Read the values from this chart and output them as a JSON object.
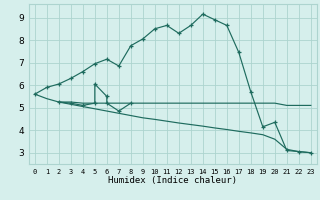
{
  "xlabel": "Humidex (Indice chaleur)",
  "bg_color": "#d6efec",
  "grid_color": "#add4cf",
  "line_color": "#1e6b5e",
  "xlim": [
    -0.5,
    23.5
  ],
  "ylim": [
    2.5,
    9.6
  ],
  "xticks": [
    0,
    1,
    2,
    3,
    4,
    5,
    6,
    7,
    8,
    9,
    10,
    11,
    12,
    13,
    14,
    15,
    16,
    17,
    18,
    19,
    20,
    21,
    22,
    23
  ],
  "yticks": [
    3,
    4,
    5,
    6,
    7,
    8,
    9
  ],
  "curve_main_x": [
    0,
    1,
    2,
    3,
    4,
    5,
    6,
    7,
    8,
    9,
    10,
    11,
    12,
    13,
    14,
    15,
    16,
    17,
    18,
    19,
    20,
    21,
    22,
    23
  ],
  "curve_main_y": [
    5.6,
    5.9,
    6.05,
    6.3,
    6.6,
    6.95,
    7.15,
    6.85,
    7.75,
    8.05,
    8.5,
    8.65,
    8.3,
    8.65,
    9.15,
    8.9,
    8.65,
    7.45,
    5.7,
    4.15,
    4.35,
    3.1,
    3.05,
    3.0
  ],
  "curve_flat_x": [
    2,
    3,
    4,
    5,
    6,
    7,
    8,
    9,
    10,
    11,
    12,
    13,
    14,
    15,
    16,
    17,
    18,
    19,
    20,
    21,
    22,
    23
  ],
  "curve_flat_y": [
    5.25,
    5.25,
    5.2,
    5.2,
    5.2,
    5.2,
    5.2,
    5.2,
    5.2,
    5.2,
    5.2,
    5.2,
    5.2,
    5.2,
    5.2,
    5.2,
    5.2,
    5.2,
    5.2,
    5.1,
    5.1,
    5.1
  ],
  "curve_diag_x": [
    0,
    1,
    2,
    3,
    4,
    5,
    6,
    7,
    8,
    9,
    10,
    11,
    12,
    13,
    14,
    15,
    16,
    17,
    18,
    19,
    20,
    21,
    22,
    23
  ],
  "curve_diag_y": [
    5.6,
    5.4,
    5.25,
    5.15,
    5.05,
    4.95,
    4.85,
    4.75,
    4.65,
    4.55,
    4.48,
    4.4,
    4.32,
    4.25,
    4.18,
    4.1,
    4.03,
    3.95,
    3.88,
    3.8,
    3.6,
    3.15,
    3.05,
    3.0
  ],
  "curve_zigzag_x": [
    2,
    3,
    4,
    5,
    5,
    6,
    6,
    7,
    8
  ],
  "curve_zigzag_y": [
    5.25,
    5.2,
    5.1,
    5.2,
    6.05,
    5.5,
    5.2,
    4.85,
    5.2
  ]
}
